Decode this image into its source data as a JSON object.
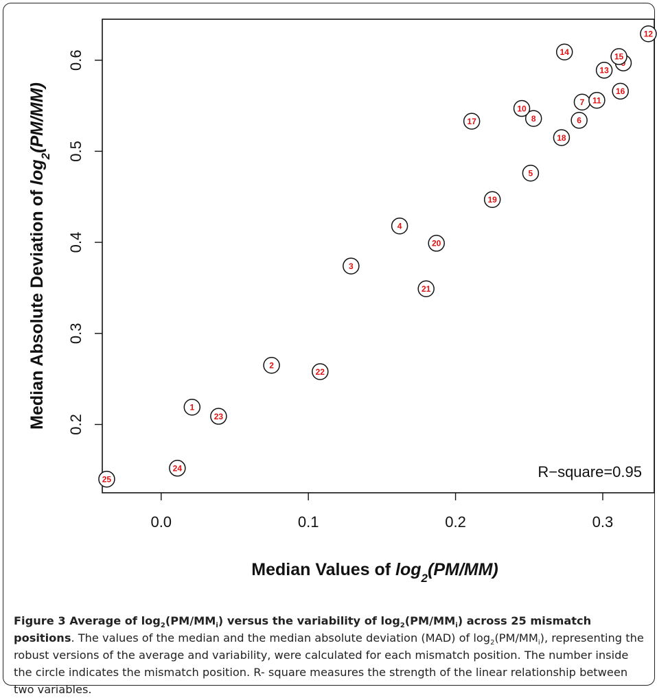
{
  "chart_data": {
    "type": "scatter",
    "xlabel_prefix": "Median Values of ",
    "xlabel_math": "log2(PM/MM)",
    "ylabel_prefix": "Median Absolute Deviation of ",
    "ylabel_math": "log2(PM/MM)",
    "xlim": [
      -0.04,
      0.335
    ],
    "ylim": [
      0.125,
      0.645
    ],
    "xticks": [
      0.0,
      0.1,
      0.2,
      0.3
    ],
    "xtick_labels": [
      "0.0",
      "0.1",
      "0.2",
      "0.3"
    ],
    "yticks": [
      0.2,
      0.3,
      0.4,
      0.5,
      0.6
    ],
    "ytick_labels": [
      "0.2",
      "0.3",
      "0.4",
      "0.5",
      "0.6"
    ],
    "annotation": "R−square=0.95",
    "marker": "circle",
    "label_color": "#e01010",
    "points": [
      {
        "label": "1",
        "x": 0.021,
        "y": 0.219
      },
      {
        "label": "2",
        "x": 0.075,
        "y": 0.265
      },
      {
        "label": "3",
        "x": 0.129,
        "y": 0.374
      },
      {
        "label": "4",
        "x": 0.162,
        "y": 0.418
      },
      {
        "label": "5",
        "x": 0.251,
        "y": 0.476
      },
      {
        "label": "6",
        "x": 0.284,
        "y": 0.534
      },
      {
        "label": "7",
        "x": 0.286,
        "y": 0.554
      },
      {
        "label": "8",
        "x": 0.253,
        "y": 0.536
      },
      {
        "label": "9",
        "x": 0.314,
        "y": 0.597
      },
      {
        "label": "10",
        "x": 0.245,
        "y": 0.547
      },
      {
        "label": "11",
        "x": 0.296,
        "y": 0.556
      },
      {
        "label": "12",
        "x": 0.331,
        "y": 0.629
      },
      {
        "label": "13",
        "x": 0.301,
        "y": 0.589
      },
      {
        "label": "14",
        "x": 0.274,
        "y": 0.609
      },
      {
        "label": "15",
        "x": 0.311,
        "y": 0.604
      },
      {
        "label": "16",
        "x": 0.312,
        "y": 0.566
      },
      {
        "label": "17",
        "x": 0.211,
        "y": 0.533
      },
      {
        "label": "18",
        "x": 0.272,
        "y": 0.515
      },
      {
        "label": "19",
        "x": 0.225,
        "y": 0.447
      },
      {
        "label": "20",
        "x": 0.187,
        "y": 0.399
      },
      {
        "label": "21",
        "x": 0.18,
        "y": 0.349
      },
      {
        "label": "22",
        "x": 0.108,
        "y": 0.258
      },
      {
        "label": "23",
        "x": 0.039,
        "y": 0.209
      },
      {
        "label": "24",
        "x": 0.011,
        "y": 0.152
      },
      {
        "label": "25",
        "x": -0.037,
        "y": 0.14
      }
    ]
  },
  "caption": {
    "title_part1": "Figure 3 Average of log",
    "title_sub1": "2",
    "title_part2": "(PM/MM",
    "title_sub2": "i",
    "title_part3": ") versus the variability of log",
    "title_sub3": "2",
    "title_part4": "(PM/MM",
    "title_sub4": "i",
    "title_part5": ") across 25 mismatch positions",
    "body_part1": ". The values of the median and the median absolute deviation (MAD) of log",
    "body_sub1": "2",
    "body_part2": "(PM/MM",
    "body_sub2": "i",
    "body_part3": "), representing the robust versions of the average and variability, were calculated for each mismatch position. The number inside the circle indicates the mismatch position. R- square measures the strength of the linear relationship between two variables."
  }
}
